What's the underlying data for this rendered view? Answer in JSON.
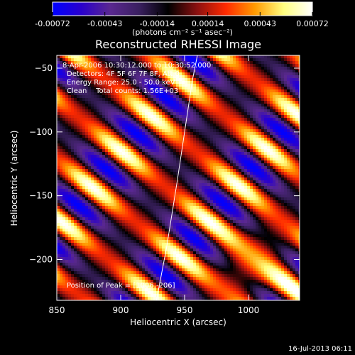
{
  "chart_data": {
    "type": "heatmap",
    "title": "Reconstructed RHESSI Image",
    "xlabel": "Heliocentric X (arcsec)",
    "ylabel": "Heliocentric Y (arcsec)",
    "xlim": [
      850,
      1040
    ],
    "ylim": [
      -232,
      -40
    ],
    "xticks": [
      850,
      900,
      950,
      1000
    ],
    "yticks": [
      -200,
      -150,
      -100,
      -50
    ],
    "colorbar": {
      "min": -0.00072,
      "max": 0.00072,
      "ticks": [
        "-0.00072",
        "-0.00043",
        "-0.00014",
        "0.00014",
        "0.00043",
        "0.00072"
      ],
      "ticks_values": [
        -0.00072,
        -0.00043,
        -0.00014,
        0.00014,
        0.00043,
        0.00072
      ],
      "unit_label": "(photons cm⁻² s⁻¹ asec⁻²)",
      "colors": [
        "#0000ff",
        "#2a00cc",
        "#5a2890",
        "#3a2060",
        "#000000",
        "#8a1010",
        "#ff2a00",
        "#ff9a00",
        "#ffff80",
        "#ffffff"
      ]
    },
    "annotations": {
      "time": "8-Apr-2006 10:30:12.000 to 10:30:52.000",
      "detectors": "Detectors: 4F 5F 6F 7F 8F, Att 0",
      "energy": "Energy Range: 25.0 - 50.0 keV",
      "clean": "Clean    Total counts: 1.56E+03",
      "peak": "Position of Peak = [1006,-206]"
    },
    "peak_position": [
      1006,
      -206
    ],
    "limb_curve": [
      [
        928,
        -232
      ],
      [
        936,
        -190
      ],
      [
        944,
        -140
      ],
      [
        950,
        -100
      ],
      [
        956,
        -60
      ],
      [
        960,
        -40
      ]
    ],
    "grid": false,
    "legend": "none"
  },
  "footer": {
    "timestamp": "16-Jul-2013 06:11"
  }
}
